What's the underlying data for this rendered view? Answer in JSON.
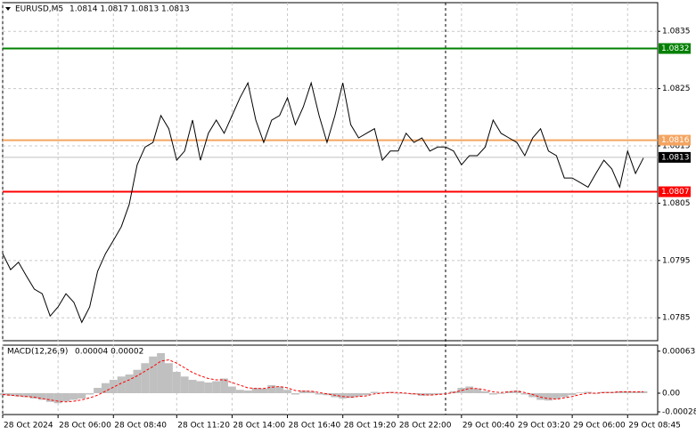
{
  "chart_data": [
    {
      "type": "line",
      "title": "EURUSD,M5",
      "subtitle": "1.0814 1.0817 1.0813 1.0813",
      "color": "#000000",
      "categories": [
        "28 Oct 2024",
        null,
        null,
        null,
        null,
        null,
        null,
        "28 Oct 06:00",
        null,
        null,
        null,
        null,
        null,
        null,
        "28 Oct 08:40",
        null,
        null,
        null,
        null,
        null,
        null,
        null,
        "28 Oct 11:20",
        null,
        null,
        null,
        null,
        null,
        null,
        "28 Oct 14:00",
        null,
        null,
        null,
        null,
        null,
        null,
        "28 Oct 16:40",
        null,
        null,
        null,
        null,
        null,
        null,
        "28 Oct 19:20",
        null,
        null,
        null,
        null,
        null,
        null,
        "28 Oct 22:00",
        null,
        null,
        null,
        null,
        null,
        null,
        null,
        "29 Oct 00:40",
        null,
        null,
        null,
        null,
        null,
        null,
        "29 Oct 03:20",
        null,
        null,
        null,
        null,
        null,
        null,
        "29 Oct 06:00",
        null,
        null,
        null,
        null,
        null,
        null,
        "29 Oct 08:45",
        null,
        null
      ],
      "values": [
        1.07962,
        1.07934,
        1.07947,
        1.07923,
        1.079,
        1.07892,
        1.07853,
        1.07869,
        1.07892,
        1.07877,
        1.07842,
        1.07869,
        1.07931,
        1.07962,
        1.07985,
        1.08009,
        1.08048,
        1.08117,
        1.08148,
        1.08156,
        1.08203,
        1.0818,
        1.08125,
        1.08141,
        1.08195,
        1.08125,
        1.08172,
        1.08195,
        1.08172,
        1.08203,
        1.08234,
        1.0826,
        1.08195,
        1.08156,
        1.08195,
        1.08203,
        1.08234,
        1.08187,
        1.08218,
        1.0826,
        1.08203,
        1.08156,
        1.08203,
        1.0826,
        1.08187,
        1.08164,
        1.08172,
        1.0818,
        1.08125,
        1.08141,
        1.08141,
        1.08172,
        1.08156,
        1.08164,
        1.08141,
        1.08148,
        1.08148,
        1.08141,
        1.08117,
        1.08133,
        1.08133,
        1.08148,
        1.08195,
        1.08172,
        1.08164,
        1.08156,
        1.08133,
        1.08164,
        1.0818,
        1.08141,
        1.08133,
        1.08094,
        1.08094,
        1.08086,
        1.08078,
        1.08102,
        1.08125,
        1.0811,
        1.08078,
        1.08141,
        1.08102,
        1.08129
      ],
      "levels": [
        {
          "value": 1.0832,
          "color": "#008000"
        },
        {
          "value": 1.0816,
          "color": "#f4a460"
        },
        {
          "value": 1.0807,
          "color": "#ff0000"
        },
        {
          "value": 1.0813,
          "color": "#000000"
        }
      ],
      "ylim": [
        1.0781,
        1.084
      ],
      "yticks": [
        1.0835,
        1.0825,
        1.0815,
        1.0805,
        1.0795,
        1.0785
      ],
      "grid": true
    },
    {
      "type": "macd",
      "title": "MACD(12,26,9)",
      "subtitle": "0.00004 0.00002",
      "color": "#c0c0c0",
      "signal_color": "#ff0000",
      "values": [
        -3e-05,
        -4e-05,
        -5e-05,
        -6e-05,
        -8e-05,
        -0.0001,
        -0.00013,
        -0.00015,
        -0.00012,
        -0.0001,
        -8e-05,
        -2e-05,
        8e-05,
        0.00015,
        0.0002,
        0.00025,
        0.00028,
        0.00035,
        0.00045,
        0.00055,
        0.0006,
        0.00045,
        0.00032,
        0.00025,
        0.0002,
        0.00018,
        0.00016,
        0.00018,
        0.00022,
        0.0001,
        5e-05,
        4e-05,
        8e-05,
        7e-05,
        0.00012,
        0.0001,
        5e-05,
        -2e-05,
        4e-05,
        3e-05,
        -2e-05,
        -3e-05,
        -6e-05,
        -8e-05,
        -7e-05,
        -5e-05,
        -3e-05,
        2e-05,
        1e-05,
        2e-05,
        0,
        -1e-05,
        -2e-05,
        -4e-05,
        -3e-05,
        -2e-05,
        0,
        3e-05,
        8e-05,
        0.0001,
        7e-05,
        3e-05,
        -2e-05,
        -1e-05,
        3e-05,
        4e-05,
        -2e-05,
        -6e-05,
        -0.0001,
        -0.00011,
        -9e-05,
        -6e-05,
        -3e-05,
        1e-05,
        2e-05,
        -1e-05,
        2e-05,
        2e-05,
        3e-05,
        3e-05,
        2e-05,
        3e-05
      ],
      "signal": [
        -2e-05,
        -3e-05,
        -4e-05,
        -5e-05,
        -6e-05,
        -8e-05,
        -0.0001,
        -0.00012,
        -0.00013,
        -0.00012,
        -0.0001,
        -7e-05,
        -3e-05,
        3e-05,
        9e-05,
        0.00015,
        0.0002,
        0.00026,
        0.00033,
        0.0004,
        0.00048,
        0.0005,
        0.00045,
        0.00038,
        0.00031,
        0.00026,
        0.00022,
        0.0002,
        0.0002,
        0.00016,
        0.00012,
        8e-05,
        7e-05,
        7e-05,
        9e-05,
        0.0001,
        8e-05,
        4e-05,
        3e-05,
        3e-05,
        1e-05,
        -1e-05,
        -3e-05,
        -5e-05,
        -6e-05,
        -5e-05,
        -4e-05,
        -1e-05,
        0,
        1e-05,
        1e-05,
        0,
        -1e-05,
        -2e-05,
        -3e-05,
        -2e-05,
        -1e-05,
        1e-05,
        4e-05,
        7e-05,
        7e-05,
        5e-05,
        2e-05,
        1e-05,
        2e-05,
        3e-05,
        1e-05,
        -2e-05,
        -6e-05,
        -8e-05,
        -9e-05,
        -7e-05,
        -5e-05,
        -2e-05,
        0,
        0,
        1e-05,
        1e-05,
        2e-05,
        2e-05,
        2e-05,
        2e-05
      ],
      "ylim": [
        -0.00032,
        0.00072
      ],
      "yticks": [
        0.00063,
        {
          "value": 0,
          "label": "0.00"
        },
        -0.00028
      ]
    }
  ]
}
